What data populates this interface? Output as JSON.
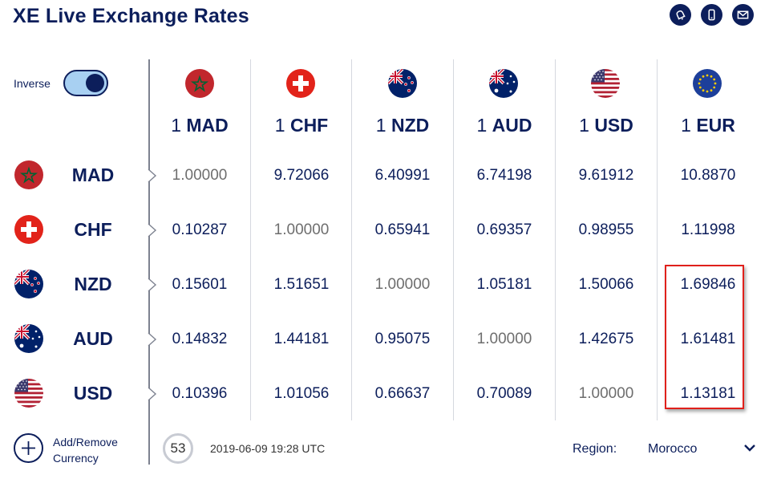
{
  "header": {
    "title": "XE Live Exchange Rates",
    "icons": [
      "bell-icon",
      "mobile-icon",
      "mail-icon"
    ]
  },
  "inverse": {
    "label": "Inverse",
    "on": true
  },
  "columns": [
    {
      "num": "1",
      "code": "MAD",
      "flag": "morocco-flag-icon"
    },
    {
      "num": "1",
      "code": "CHF",
      "flag": "switzerland-flag-icon"
    },
    {
      "num": "1",
      "code": "NZD",
      "flag": "new-zealand-flag-icon"
    },
    {
      "num": "1",
      "code": "AUD",
      "flag": "australia-flag-icon"
    },
    {
      "num": "1",
      "code": "USD",
      "flag": "usa-flag-icon"
    },
    {
      "num": "1",
      "code": "EUR",
      "flag": "eu-flag-icon"
    }
  ],
  "rows": [
    {
      "code": "MAD",
      "values": [
        "1.00000",
        "9.72066",
        "6.40991",
        "6.74198",
        "9.61912",
        "10.8870"
      ]
    },
    {
      "code": "CHF",
      "values": [
        "0.10287",
        "1.00000",
        "0.65941",
        "0.69357",
        "0.98955",
        "1.11998"
      ]
    },
    {
      "code": "NZD",
      "values": [
        "0.15601",
        "1.51651",
        "1.00000",
        "1.05181",
        "1.50066",
        "1.69846"
      ]
    },
    {
      "code": "AUD",
      "values": [
        "0.14832",
        "1.44181",
        "0.95075",
        "1.00000",
        "1.42675",
        "1.61481"
      ]
    },
    {
      "code": "USD",
      "values": [
        "0.10396",
        "1.01056",
        "0.66637",
        "0.70089",
        "1.00000",
        "1.13181"
      ]
    }
  ],
  "footer": {
    "add_label_line1": "Add/Remove",
    "add_label_line2": "Currency",
    "timer": "53",
    "timestamp": "2019-06-09 19:28 UTC",
    "region_label": "Region:",
    "region_value": "Morocco"
  },
  "colors": {
    "navy": "#0c1e5b",
    "toggle_bg": "#a8d0f2",
    "highlight": "#e0201b",
    "self_rate": "#6e6e6e"
  }
}
